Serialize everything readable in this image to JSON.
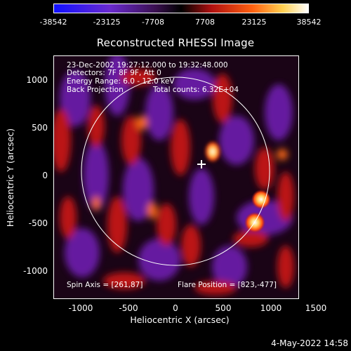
{
  "colorbar": {
    "labels": [
      "-38542",
      "-23125",
      "-7708",
      "7708",
      "23125",
      "38542"
    ]
  },
  "plot": {
    "title": "Reconstructed RHESSI Image",
    "annotations": {
      "time": "23-Dec-2002 19:27:12.000 to 19:32:48.000",
      "detectors": "Detectors: 7F 8F 9F, Att 0",
      "energy": "Energy Range: 6.0 - 12.0 keV",
      "method": "Back Projection",
      "counts": "Total counts: 6.32E+04",
      "spin_axis": "Spin Axis = [261,87]",
      "flare_position": "Flare Position = [823,-477]"
    },
    "xlabel": "Heliocentric X (arcsec)",
    "ylabel": "Heliocentric Y (arcsec)",
    "xticks": [
      "-1000",
      "-500",
      "0",
      "500",
      "1000",
      "1500"
    ],
    "yticks": [
      "1000",
      "500",
      "0",
      "-500",
      "-1000"
    ]
  },
  "timestamp": "4-May-2022 14:58",
  "colors": {
    "background": "#000000",
    "foreground": "#ffffff"
  }
}
